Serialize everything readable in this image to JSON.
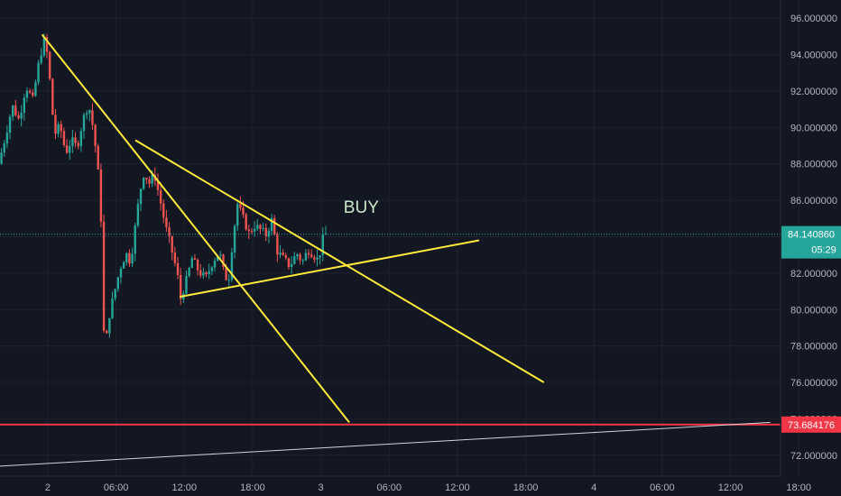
{
  "chart_data": {
    "type": "candlestick",
    "title": "",
    "y_axis": {
      "ticks": [
        96.0,
        94.0,
        92.0,
        90.0,
        88.0,
        86.0,
        84.0,
        82.0,
        80.0,
        78.0,
        76.0,
        74.0,
        72.0
      ],
      "tick_labels": [
        "96.000000",
        "94.000000",
        "92.000000",
        "90.000000",
        "88.000000",
        "86.000000",
        "84.000000",
        "82.000000",
        "80.000000",
        "78.000000",
        "76.000000",
        "74.000000",
        "72.000000"
      ],
      "range": [
        70.85,
        97.0
      ]
    },
    "x_axis": {
      "ticks": [
        "2",
        "06:00",
        "12:00",
        "18:00",
        "3",
        "06:00",
        "12:00",
        "18:00",
        "4",
        "06:00",
        "12:00",
        "18:00"
      ],
      "range_hours": [
        -4.2,
        64.4
      ]
    },
    "current_price": {
      "label": "84.140860",
      "countdown": "05:29",
      "value": 84.14086,
      "color": "#26a69a"
    },
    "support_level": {
      "label": "73.684176",
      "value": 73.684176,
      "color": "#f23645"
    },
    "annotation": {
      "text": "BUY",
      "x_hour": 26.0,
      "y": 85.65
    },
    "colors": {
      "up": "#26a69a",
      "down": "#ef5350",
      "trendline": "#ffeb3b",
      "background": "#131722",
      "grid": "#1e2230"
    },
    "trendlines": [
      {
        "name": "main-downtrend",
        "x1": -0.5,
        "y1": 95.1,
        "x2": 26.5,
        "y2": 73.8
      },
      {
        "name": "upper-triangle",
        "x1": 7.7,
        "y1": 89.3,
        "x2": 43.6,
        "y2": 76.0
      },
      {
        "name": "lower-triangle",
        "x1": 11.6,
        "y1": 80.7,
        "x2": 37.9,
        "y2": 83.8
      },
      {
        "name": "long-support",
        "x1": -4.2,
        "y1": 71.4,
        "x2": 63.5,
        "y2": 73.8
      }
    ],
    "ohlc_anchors": [
      {
        "h": -4.2,
        "c": 88.0
      },
      {
        "h": -3.6,
        "c": 89.5
      },
      {
        "h": -3.0,
        "c": 91.2
      },
      {
        "h": -2.4,
        "c": 90.4
      },
      {
        "h": -1.8,
        "c": 92.3
      },
      {
        "h": -1.2,
        "c": 91.5
      },
      {
        "h": -0.6,
        "c": 93.8
      },
      {
        "h": -0.1,
        "c": 95.0
      },
      {
        "h": 0.3,
        "c": 92.6
      },
      {
        "h": 0.7,
        "c": 89.6
      },
      {
        "h": 1.2,
        "c": 90.1
      },
      {
        "h": 1.7,
        "c": 88.6
      },
      {
        "h": 2.2,
        "c": 89.3
      },
      {
        "h": 2.7,
        "c": 88.9
      },
      {
        "h": 3.2,
        "c": 90.4
      },
      {
        "h": 3.7,
        "c": 91.3
      },
      {
        "h": 4.1,
        "c": 90.0
      },
      {
        "h": 4.5,
        "c": 88.0
      },
      {
        "h": 4.8,
        "c": 85.0
      },
      {
        "h": 5.0,
        "c": 79.0
      },
      {
        "h": 5.2,
        "c": 78.0
      },
      {
        "h": 5.5,
        "c": 79.6
      },
      {
        "h": 6.0,
        "c": 81.0
      },
      {
        "h": 6.5,
        "c": 82.3
      },
      {
        "h": 7.0,
        "c": 83.1
      },
      {
        "h": 7.4,
        "c": 82.6
      },
      {
        "h": 7.8,
        "c": 84.5
      },
      {
        "h": 8.2,
        "c": 86.4
      },
      {
        "h": 8.6,
        "c": 87.6
      },
      {
        "h": 9.0,
        "c": 86.9
      },
      {
        "h": 9.5,
        "c": 87.4
      },
      {
        "h": 10.0,
        "c": 86.0
      },
      {
        "h": 10.5,
        "c": 84.5
      },
      {
        "h": 11.0,
        "c": 83.3
      },
      {
        "h": 11.5,
        "c": 82.0
      },
      {
        "h": 11.8,
        "c": 80.6
      },
      {
        "h": 12.3,
        "c": 81.6
      },
      {
        "h": 12.8,
        "c": 82.8
      },
      {
        "h": 13.4,
        "c": 82.1
      },
      {
        "h": 14.0,
        "c": 81.7
      },
      {
        "h": 14.6,
        "c": 82.6
      },
      {
        "h": 15.2,
        "c": 83.2
      },
      {
        "h": 15.6,
        "c": 82.0
      },
      {
        "h": 16.0,
        "c": 81.5
      },
      {
        "h": 16.4,
        "c": 84.0
      },
      {
        "h": 16.8,
        "c": 85.8
      },
      {
        "h": 17.3,
        "c": 85.0
      },
      {
        "h": 17.8,
        "c": 84.2
      },
      {
        "h": 18.3,
        "c": 84.6
      },
      {
        "h": 18.8,
        "c": 84.4
      },
      {
        "h": 19.3,
        "c": 84.1
      },
      {
        "h": 19.8,
        "c": 84.9
      },
      {
        "h": 20.3,
        "c": 83.2
      },
      {
        "h": 20.8,
        "c": 82.8
      },
      {
        "h": 21.4,
        "c": 82.4
      },
      {
        "h": 22.0,
        "c": 83.1
      },
      {
        "h": 22.5,
        "c": 82.6
      },
      {
        "h": 23.0,
        "c": 83.3
      },
      {
        "h": 23.5,
        "c": 83.0
      },
      {
        "h": 23.9,
        "c": 82.7
      },
      {
        "h": 24.2,
        "c": 83.6
      },
      {
        "h": 24.4,
        "c": 84.14
      }
    ]
  }
}
